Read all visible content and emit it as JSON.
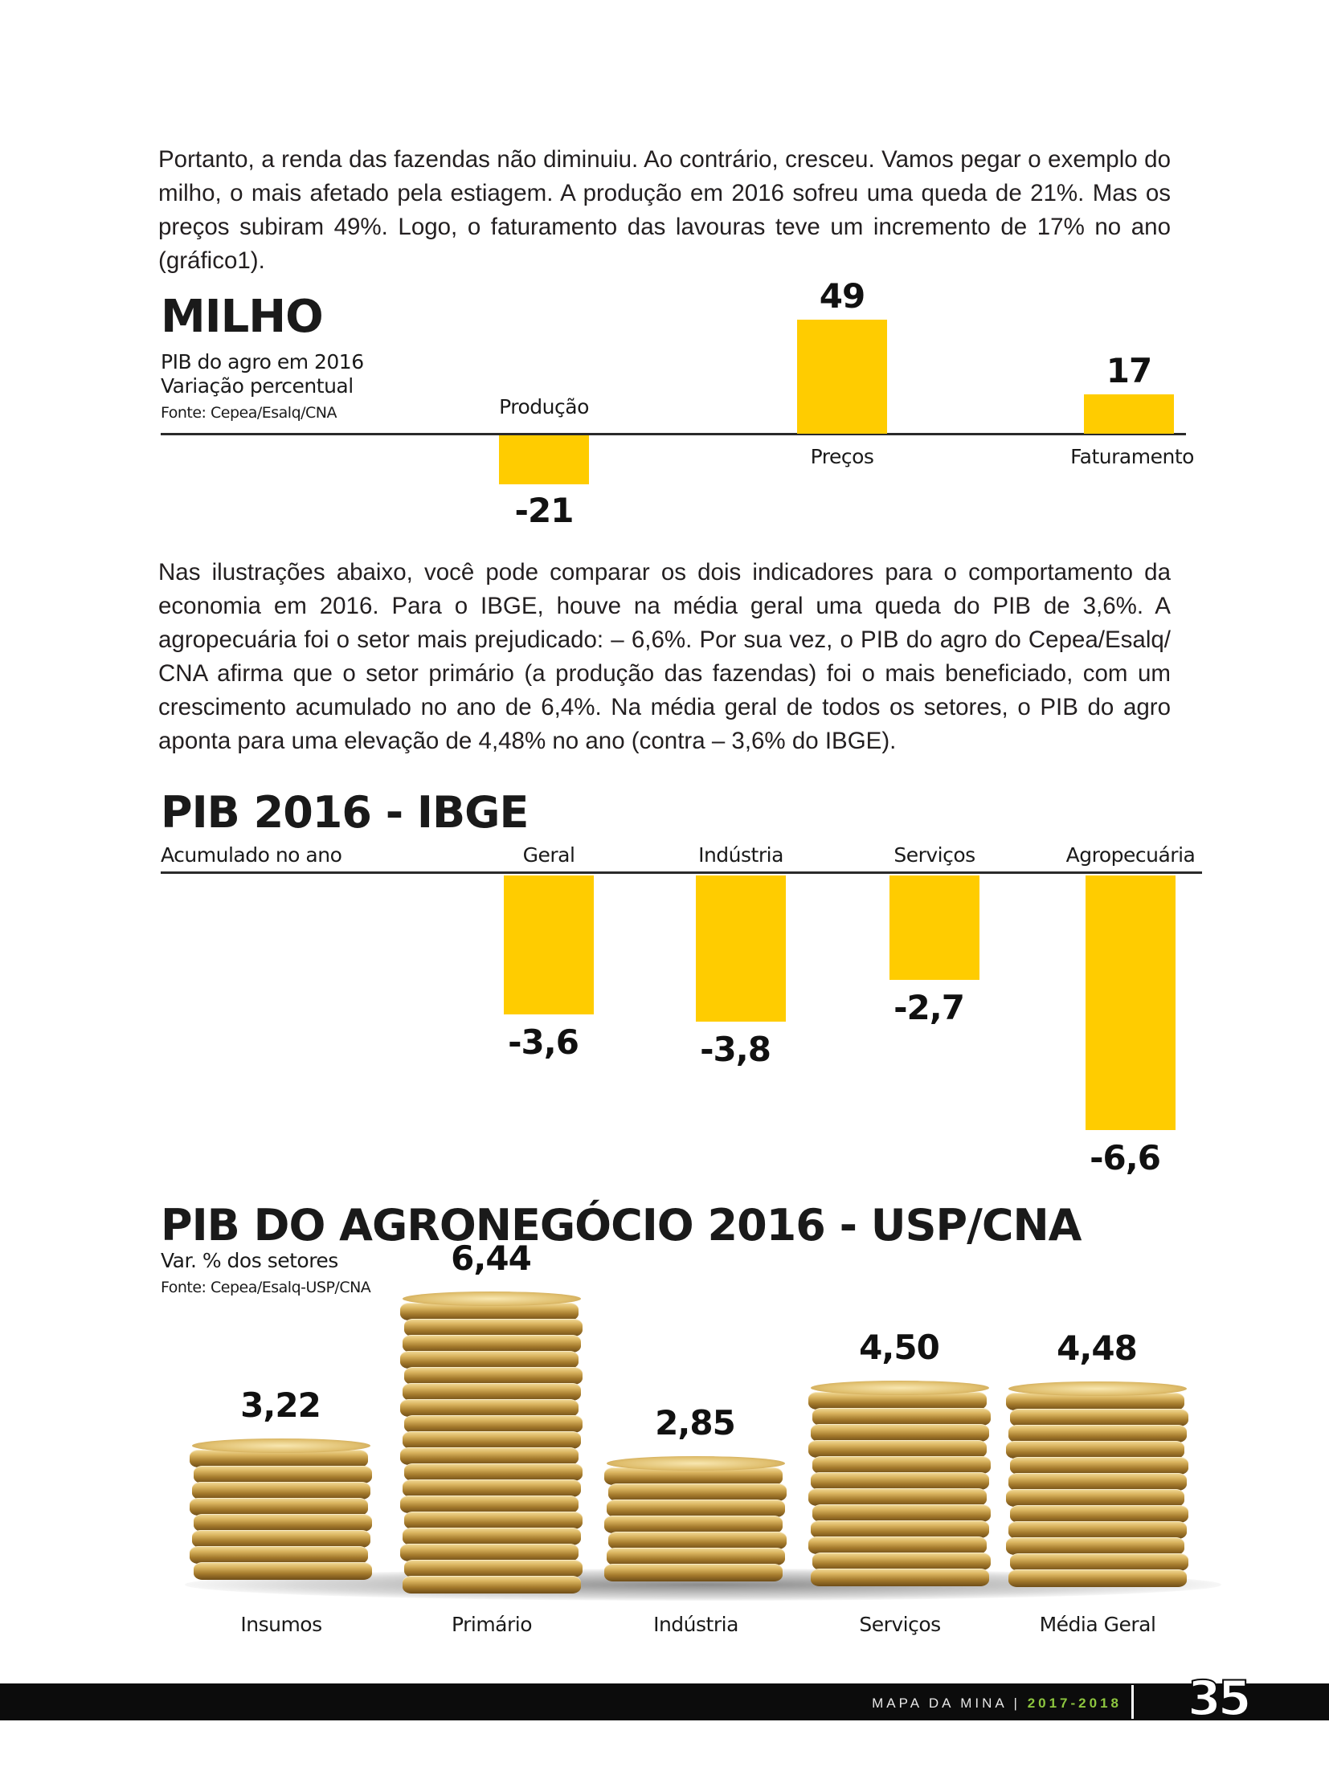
{
  "intro_paragraph": "Portanto, a renda das fazendas não diminuiu. Ao contrário, cresceu. Vamos pegar o exemplo do milho, o mais afetado pela estiagem. A produção em 2016 sofreu uma queda de 21%. Mas os preços subiram 49%. Logo, o faturamento das lavouras teve um incremento de 17% no ano (gráfico1).",
  "middle_paragraph": "Nas ilustrações abaixo, você pode comparar os dois indicadores para o comportamento da economia em 2016. Para o IBGE, houve na média geral uma queda do PIB de 3,6%. A agropecuária foi o setor mais prejudicado: – 6,6%. Por sua vez, o PIB do agro do Cepea/Esalq/ CNA afirma que o setor primário (a produção das fazendas) foi o mais beneficiado, com um crescimento acumulado no ano de 6,4%. Na média geral de todos os setores, o PIB do agro aponta para uma elevação de 4,48% no ano (contra – 3,6% do IBGE).",
  "chart_data": [
    {
      "type": "bar",
      "title": "MILHO",
      "subtitle_line1": "PIB do agro em 2016",
      "subtitle_line2": "Variação percentual",
      "source": "Fonte: Cepea/Esalq/CNA",
      "categories": [
        "Produção",
        "Preços",
        "Faturamento"
      ],
      "values": [
        -21,
        49,
        17
      ],
      "value_labels": [
        "-21",
        "49",
        "17"
      ],
      "bar_color": "#ffcc00"
    },
    {
      "type": "bar",
      "title": "PIB 2016 - IBGE",
      "subtitle": "Acumulado no ano",
      "categories": [
        "Geral",
        "Indústria",
        "Serviços",
        "Agropecuária"
      ],
      "values": [
        -3.6,
        -3.8,
        -2.7,
        -6.6
      ],
      "value_labels": [
        "-3,6",
        "-3,8",
        "-2,7",
        "-6,6"
      ],
      "bar_color": "#ffcc00"
    },
    {
      "type": "bar",
      "title": "PIB DO AGRONEGÓCIO 2016 - USP/CNA",
      "subtitle": "Var. % dos setores",
      "source": "Fonte: Cepea/Esalq-USP/CNA",
      "categories": [
        "Insumos",
        "Primário",
        "Indústria",
        "Serviços",
        "Média Geral"
      ],
      "values": [
        3.22,
        6.44,
        2.85,
        4.5,
        4.48
      ],
      "value_labels": [
        "3,22",
        "6,44",
        "2,85",
        "4,50",
        "4,48"
      ],
      "mark": "coin-stack"
    }
  ],
  "footer": {
    "publication": "MAPA DA MINA",
    "divider": "|",
    "years": "2017-2018",
    "page_number": "35"
  }
}
